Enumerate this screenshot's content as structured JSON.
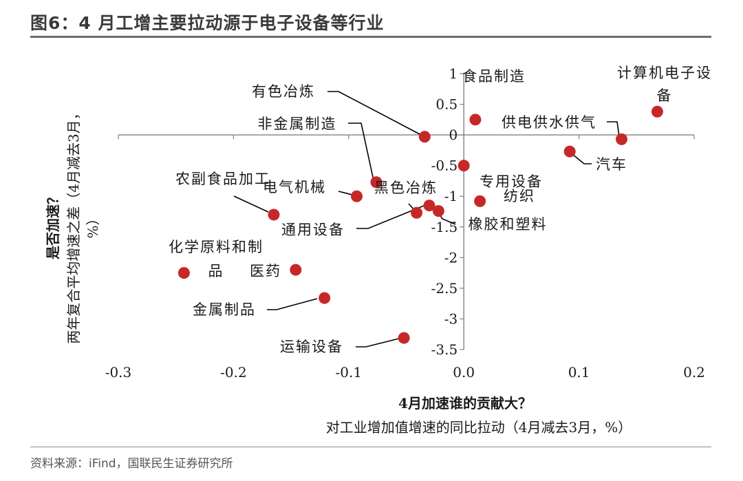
{
  "figure": {
    "title": "图6：4 月工增主要拉动源于电子设备等行业",
    "source": "资料来源：iFind，国联民生证券研究所"
  },
  "colors": {
    "point": "#c62828",
    "axis": "#808080",
    "leader": "#000000"
  },
  "chart_data": {
    "type": "scatter",
    "xlabel": "4月加速谁的贡献大？",
    "xlabel_sub": "对工业增加值增速的同比拉动（4月减去3月，%）",
    "ylabel": "是否加速？",
    "ylabel_sub": "两年复合平均增速之差（4月减去3月，%）",
    "xlim": [
      -0.3,
      0.2
    ],
    "ylim": [
      -3.5,
      1
    ],
    "x_ticks": [
      "-0.3",
      "-0.2",
      "-0.1",
      "0.0",
      "0.1",
      "0.2"
    ],
    "y_ticks": [
      "1",
      "0.5",
      "0",
      "-0.5",
      "-1",
      "-1.5",
      "-2",
      "-2.5",
      "-3",
      "-3.5"
    ],
    "grid": false,
    "points": [
      {
        "name": "计算机电子设备",
        "x": 0.168,
        "y": 0.38
      },
      {
        "name": "食品制造",
        "x": 0.01,
        "y": 0.25
      },
      {
        "name": "供电供水供气",
        "x": 0.137,
        "y": -0.07
      },
      {
        "name": "汽车",
        "x": 0.092,
        "y": -0.27
      },
      {
        "name": "有色冶炼",
        "x": -0.034,
        "y": -0.03
      },
      {
        "name": "非金属制造",
        "x": -0.076,
        "y": -0.77
      },
      {
        "name": "电气机械",
        "x": -0.093,
        "y": -1.0
      },
      {
        "name": "黑色冶炼",
        "x": -0.03,
        "y": -1.15
      },
      {
        "name": "通用设备",
        "x": -0.041,
        "y": -1.27
      },
      {
        "name": "橡胶和塑料",
        "x": -0.022,
        "y": -1.24
      },
      {
        "name": "专用设备",
        "x": 0.0,
        "y": -0.5
      },
      {
        "name": "纺织",
        "x": 0.014,
        "y": -1.08
      },
      {
        "name": "农副食品加工",
        "x": -0.165,
        "y": -1.3
      },
      {
        "name": "化学原料和制品",
        "x": -0.243,
        "y": -2.25
      },
      {
        "name": "医药",
        "x": -0.146,
        "y": -2.2
      },
      {
        "name": "金属制品",
        "x": -0.121,
        "y": -2.66
      },
      {
        "name": "运输设备",
        "x": -0.052,
        "y": -3.31
      }
    ]
  }
}
